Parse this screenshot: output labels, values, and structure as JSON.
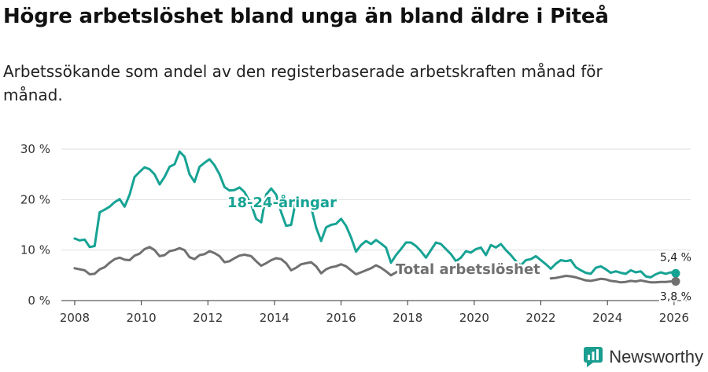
{
  "title": "Högre arbetslöshet bland unga än bland äldre i Piteå",
  "subtitle": "Arbetssökande som andel av den registerbaserade arbetskraften månad för månad.",
  "brand": {
    "name": "Newsworthy",
    "icon": "newsworthy-logo-icon",
    "color": "#1a9e8f"
  },
  "colors": {
    "youth": "#16a394",
    "total": "#707070",
    "grid": "#dedede",
    "axis": "#333333"
  },
  "chart_data": {
    "type": "line",
    "title": "Högre arbetslöshet bland unga än bland äldre i Piteå",
    "subtitle": "Arbetssökande som andel av den registerbaserade arbetskraften månad för månad.",
    "xlabel": "",
    "ylabel": "",
    "x_range": [
      2007.6,
      2026.5
    ],
    "y_range": [
      0,
      30
    ],
    "x_ticks": [
      2008,
      2010,
      2012,
      2014,
      2016,
      2018,
      2020,
      2022,
      2024,
      2026
    ],
    "x_tick_labels": [
      "2008",
      "2010",
      "2012",
      "2014",
      "2016",
      "2018",
      "2020",
      "2022",
      "2024",
      "2026"
    ],
    "y_ticks": [
      0,
      10,
      20,
      30
    ],
    "y_tick_labels": [
      "0 %",
      "10 %",
      "20 %",
      "30 %"
    ],
    "grid": true,
    "series": [
      {
        "name": "18-24-åringar",
        "color": "#16a394",
        "end_label": "5,4 %",
        "points": [
          [
            2008.0,
            12.3
          ],
          [
            2008.15,
            11.9
          ],
          [
            2008.3,
            12.1
          ],
          [
            2008.45,
            10.6
          ],
          [
            2008.6,
            10.8
          ],
          [
            2008.75,
            17.5
          ],
          [
            2008.9,
            18.0
          ],
          [
            2009.05,
            18.6
          ],
          [
            2009.2,
            19.5
          ],
          [
            2009.35,
            20.1
          ],
          [
            2009.5,
            18.6
          ],
          [
            2009.65,
            21.0
          ],
          [
            2009.8,
            24.5
          ],
          [
            2009.95,
            25.5
          ],
          [
            2010.1,
            26.4
          ],
          [
            2010.25,
            26.0
          ],
          [
            2010.4,
            25.0
          ],
          [
            2010.55,
            23.0
          ],
          [
            2010.7,
            24.5
          ],
          [
            2010.85,
            26.5
          ],
          [
            2011.0,
            27.0
          ],
          [
            2011.15,
            29.5
          ],
          [
            2011.3,
            28.5
          ],
          [
            2011.45,
            25.0
          ],
          [
            2011.6,
            23.5
          ],
          [
            2011.75,
            26.5
          ],
          [
            2011.9,
            27.3
          ],
          [
            2012.05,
            28.0
          ],
          [
            2012.2,
            26.8
          ],
          [
            2012.35,
            25.0
          ],
          [
            2012.5,
            22.5
          ],
          [
            2012.65,
            21.8
          ],
          [
            2012.8,
            21.9
          ],
          [
            2012.95,
            22.4
          ],
          [
            2013.1,
            21.5
          ],
          [
            2013.3,
            19.0
          ],
          [
            2013.45,
            16.2
          ],
          [
            2013.6,
            15.5
          ],
          [
            2013.75,
            21.0
          ],
          [
            2013.9,
            22.2
          ],
          [
            2014.05,
            21.0
          ],
          [
            2014.2,
            17.5
          ],
          [
            2014.35,
            14.8
          ],
          [
            2014.5,
            15.0
          ],
          [
            2014.65,
            20.0
          ],
          [
            2014.8,
            20.2
          ],
          [
            2014.95,
            19.5
          ],
          [
            2015.1,
            18.5
          ],
          [
            2015.25,
            14.5
          ],
          [
            2015.4,
            11.8
          ],
          [
            2015.55,
            14.5
          ],
          [
            2015.7,
            15.0
          ],
          [
            2015.85,
            15.2
          ],
          [
            2016.0,
            16.2
          ],
          [
            2016.15,
            14.8
          ],
          [
            2016.3,
            12.5
          ],
          [
            2016.45,
            9.7
          ],
          [
            2016.6,
            11.0
          ],
          [
            2016.75,
            11.8
          ],
          [
            2016.9,
            11.2
          ],
          [
            2017.05,
            12.0
          ],
          [
            2017.2,
            11.3
          ],
          [
            2017.35,
            10.5
          ],
          [
            2017.5,
            7.5
          ],
          [
            2017.65,
            9.0
          ],
          [
            2017.8,
            10.2
          ],
          [
            2017.95,
            11.5
          ],
          [
            2018.1,
            11.5
          ],
          [
            2018.25,
            10.8
          ],
          [
            2018.4,
            9.8
          ],
          [
            2018.55,
            8.5
          ],
          [
            2018.7,
            10.0
          ],
          [
            2018.85,
            11.5
          ],
          [
            2019.0,
            11.2
          ],
          [
            2019.15,
            10.2
          ],
          [
            2019.3,
            9.2
          ],
          [
            2019.45,
            7.8
          ],
          [
            2019.6,
            8.5
          ],
          [
            2019.75,
            9.8
          ],
          [
            2019.9,
            9.5
          ],
          [
            2020.05,
            10.2
          ],
          [
            2020.2,
            10.5
          ],
          [
            2020.35,
            9.0
          ],
          [
            2020.5,
            11.0
          ],
          [
            2020.65,
            10.5
          ],
          [
            2020.8,
            11.2
          ],
          [
            2020.95,
            10.0
          ],
          [
            2021.1,
            9.0
          ],
          [
            2021.25,
            7.8
          ],
          [
            2021.4,
            7.0
          ],
          [
            2021.55,
            8.0
          ],
          [
            2021.7,
            8.2
          ],
          [
            2021.85,
            8.8
          ],
          [
            2022.0,
            8.0
          ],
          [
            2022.15,
            7.2
          ],
          [
            2022.3,
            6.3
          ],
          [
            2022.45,
            7.3
          ],
          [
            2022.6,
            8.0
          ],
          [
            2022.75,
            7.8
          ],
          [
            2022.9,
            8.0
          ],
          [
            2023.05,
            6.6
          ],
          [
            2023.2,
            6.0
          ],
          [
            2023.35,
            5.5
          ],
          [
            2023.5,
            5.3
          ],
          [
            2023.65,
            6.5
          ],
          [
            2023.8,
            6.8
          ],
          [
            2023.95,
            6.2
          ],
          [
            2024.1,
            5.5
          ],
          [
            2024.25,
            5.8
          ],
          [
            2024.4,
            5.5
          ],
          [
            2024.55,
            5.3
          ],
          [
            2024.7,
            6.0
          ],
          [
            2024.85,
            5.6
          ],
          [
            2025.0,
            5.8
          ],
          [
            2025.15,
            4.8
          ],
          [
            2025.3,
            4.6
          ],
          [
            2025.45,
            5.2
          ],
          [
            2025.6,
            5.6
          ],
          [
            2025.75,
            5.3
          ],
          [
            2025.9,
            5.6
          ],
          [
            2026.05,
            5.4
          ]
        ]
      },
      {
        "name": "Total arbetslöshet",
        "color": "#707070",
        "end_label": "3,8 %",
        "points": [
          [
            2008.0,
            6.4
          ],
          [
            2008.15,
            6.2
          ],
          [
            2008.3,
            6.0
          ],
          [
            2008.45,
            5.2
          ],
          [
            2008.6,
            5.3
          ],
          [
            2008.75,
            6.2
          ],
          [
            2008.9,
            6.6
          ],
          [
            2009.05,
            7.5
          ],
          [
            2009.2,
            8.2
          ],
          [
            2009.35,
            8.5
          ],
          [
            2009.5,
            8.1
          ],
          [
            2009.65,
            8.0
          ],
          [
            2009.8,
            8.9
          ],
          [
            2009.95,
            9.3
          ],
          [
            2010.1,
            10.2
          ],
          [
            2010.25,
            10.6
          ],
          [
            2010.4,
            10.0
          ],
          [
            2010.55,
            8.8
          ],
          [
            2010.7,
            9.0
          ],
          [
            2010.85,
            9.8
          ],
          [
            2011.0,
            10.0
          ],
          [
            2011.15,
            10.4
          ],
          [
            2011.3,
            10.0
          ],
          [
            2011.45,
            8.6
          ],
          [
            2011.6,
            8.2
          ],
          [
            2011.75,
            9.0
          ],
          [
            2011.9,
            9.2
          ],
          [
            2012.05,
            9.8
          ],
          [
            2012.2,
            9.4
          ],
          [
            2012.35,
            8.8
          ],
          [
            2012.5,
            7.6
          ],
          [
            2012.65,
            7.8
          ],
          [
            2012.8,
            8.4
          ],
          [
            2012.95,
            8.9
          ],
          [
            2013.1,
            9.1
          ],
          [
            2013.3,
            8.8
          ],
          [
            2013.45,
            7.8
          ],
          [
            2013.6,
            6.9
          ],
          [
            2013.75,
            7.4
          ],
          [
            2013.9,
            8.0
          ],
          [
            2014.05,
            8.4
          ],
          [
            2014.2,
            8.2
          ],
          [
            2014.35,
            7.4
          ],
          [
            2014.5,
            6.0
          ],
          [
            2014.65,
            6.5
          ],
          [
            2014.8,
            7.2
          ],
          [
            2014.95,
            7.4
          ],
          [
            2015.1,
            7.6
          ],
          [
            2015.25,
            6.8
          ],
          [
            2015.4,
            5.4
          ],
          [
            2015.55,
            6.2
          ],
          [
            2015.7,
            6.6
          ],
          [
            2015.85,
            6.8
          ],
          [
            2016.0,
            7.2
          ],
          [
            2016.15,
            6.8
          ],
          [
            2016.3,
            6.0
          ],
          [
            2016.45,
            5.2
          ],
          [
            2016.6,
            5.6
          ],
          [
            2016.75,
            6.0
          ],
          [
            2016.9,
            6.4
          ],
          [
            2017.05,
            7.0
          ],
          [
            2017.2,
            6.5
          ],
          [
            2017.35,
            5.8
          ],
          [
            2017.5,
            5.0
          ],
          [
            2017.65,
            5.6
          ],
          [
            2017.8,
            6.0
          ],
          [
            2017.95,
            6.2
          ],
          [
            2022.3,
            4.4
          ],
          [
            2022.45,
            4.5
          ],
          [
            2022.6,
            4.7
          ],
          [
            2022.75,
            4.9
          ],
          [
            2022.9,
            4.8
          ],
          [
            2023.05,
            4.6
          ],
          [
            2023.2,
            4.3
          ],
          [
            2023.35,
            4.0
          ],
          [
            2023.5,
            3.9
          ],
          [
            2023.65,
            4.1
          ],
          [
            2023.8,
            4.3
          ],
          [
            2023.95,
            4.2
          ],
          [
            2024.1,
            3.9
          ],
          [
            2024.25,
            3.8
          ],
          [
            2024.4,
            3.6
          ],
          [
            2024.55,
            3.7
          ],
          [
            2024.7,
            3.9
          ],
          [
            2024.85,
            3.8
          ],
          [
            2025.0,
            4.0
          ],
          [
            2025.15,
            3.8
          ],
          [
            2025.3,
            3.6
          ],
          [
            2025.45,
            3.6
          ],
          [
            2025.6,
            3.7
          ],
          [
            2025.75,
            3.7
          ],
          [
            2025.9,
            3.8
          ],
          [
            2026.05,
            3.8
          ]
        ]
      }
    ]
  }
}
